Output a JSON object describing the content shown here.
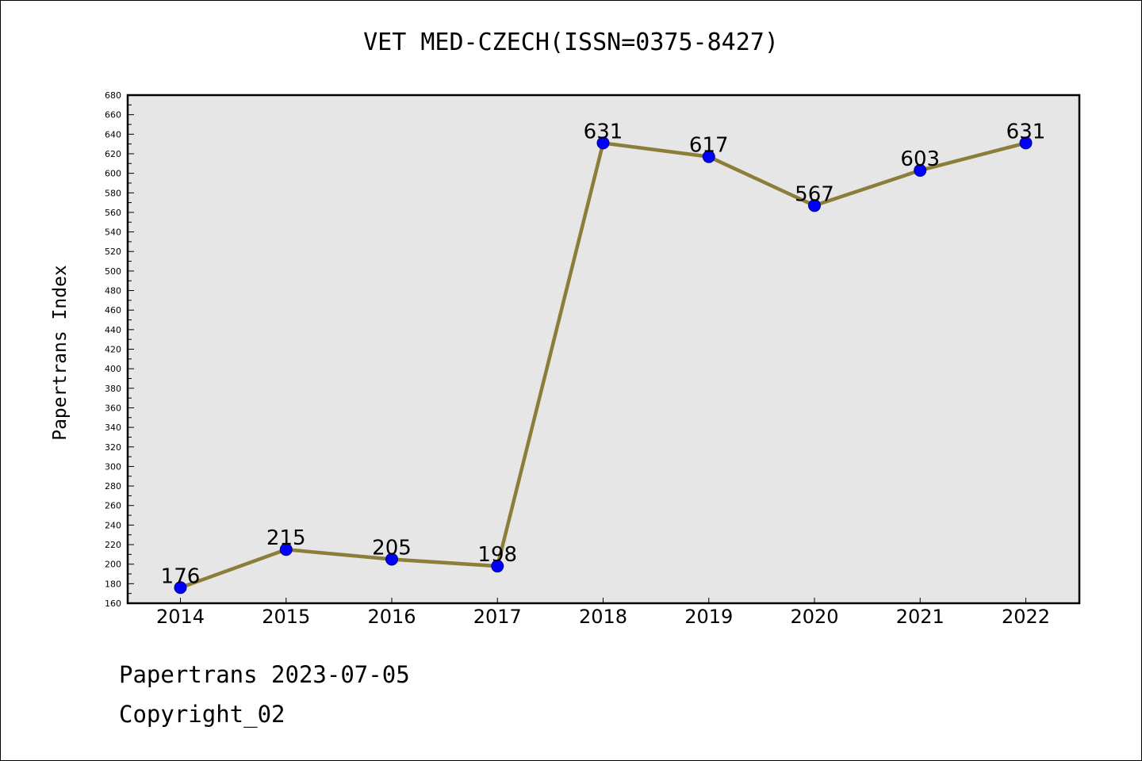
{
  "chart_data": {
    "type": "line",
    "title": "VET MED-CZECH(ISSN=0375-8427)",
    "ylabel": "Papertrans Index",
    "xlabel": "",
    "categories": [
      "2014",
      "2015",
      "2016",
      "2017",
      "2018",
      "2019",
      "2020",
      "2021",
      "2022"
    ],
    "values": [
      176,
      215,
      205,
      198,
      631,
      617,
      567,
      603,
      631
    ],
    "ylim": [
      160,
      680
    ],
    "yticks": [
      160,
      180,
      200,
      220,
      240,
      260,
      280,
      300,
      320,
      340,
      360,
      380,
      400,
      420,
      440,
      460,
      480,
      500,
      520,
      540,
      560,
      580,
      600,
      620,
      640,
      660,
      680
    ],
    "grid": false,
    "data_labels": true,
    "colors": {
      "line": "#8b7d3a",
      "marker": "#0000ff",
      "plot_background": "#e6e6e6"
    }
  },
  "footer": {
    "line1": "Papertrans 2023-07-05",
    "line2": "Copyright_02"
  }
}
